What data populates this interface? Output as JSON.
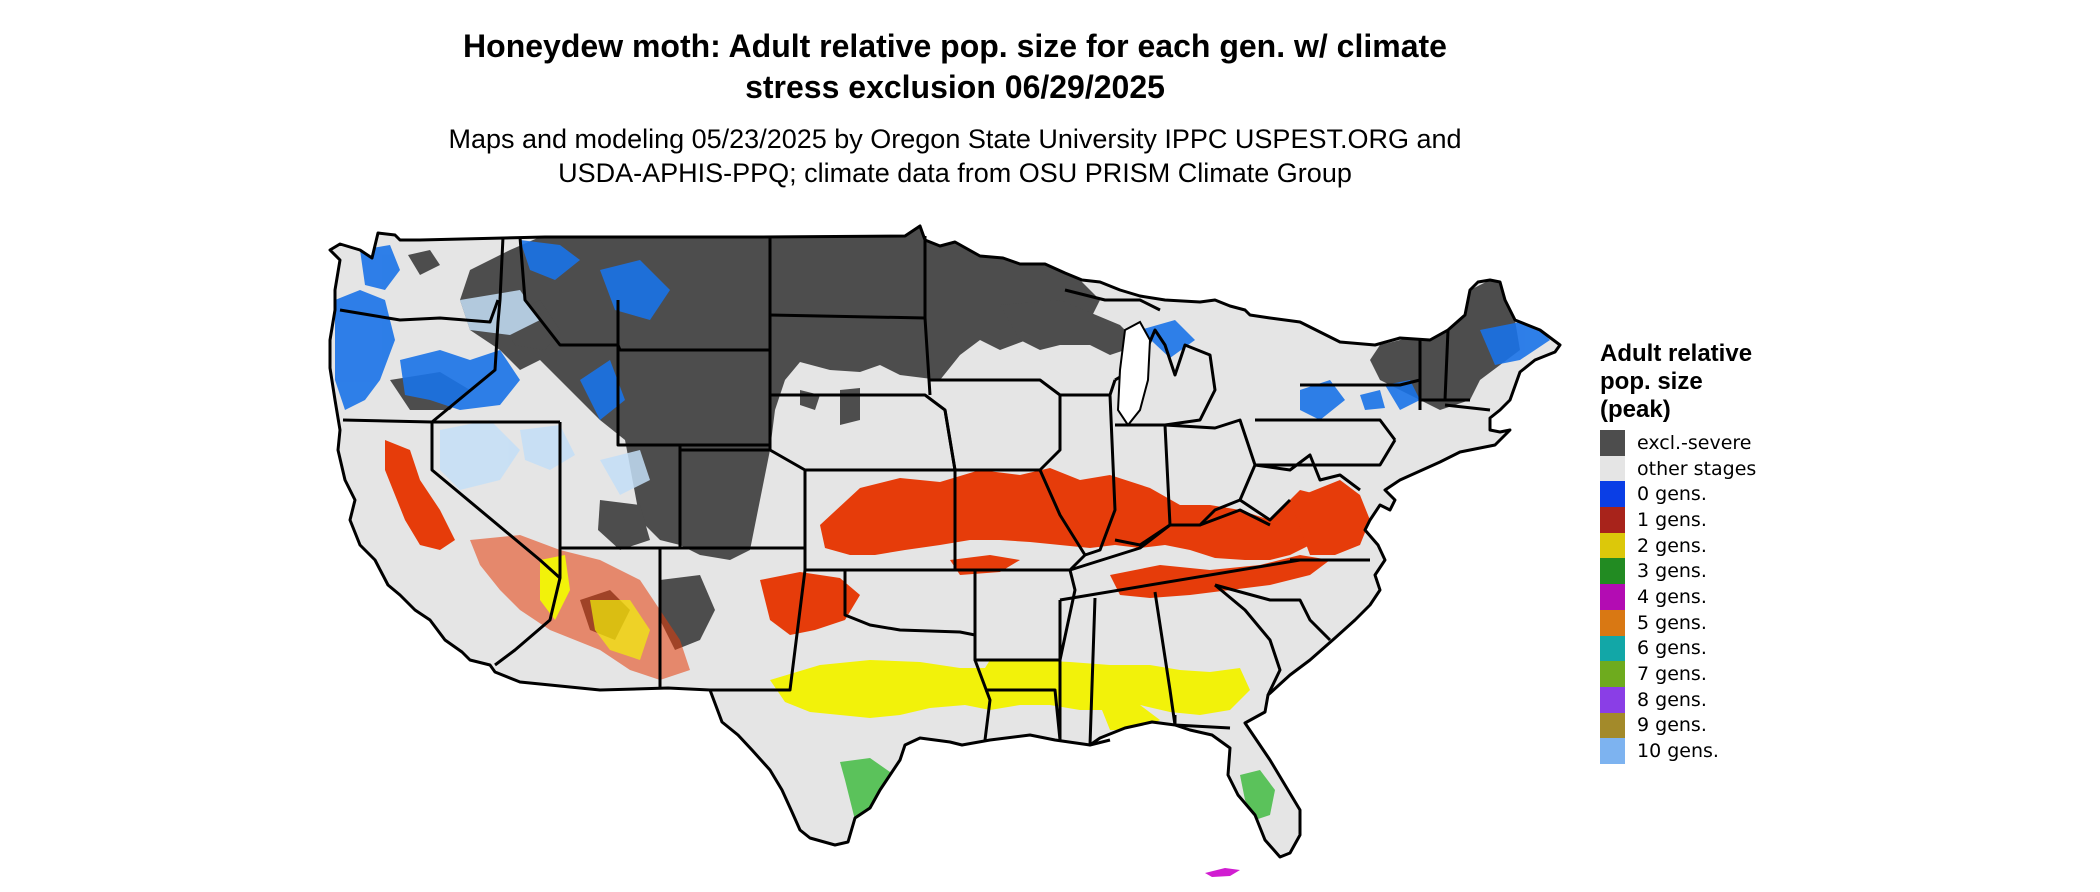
{
  "title_line1": "Honeydew moth: Adult relative pop. size for each gen. w/ climate",
  "title_line2": "stress exclusion 06/29/2025",
  "subtitle_line1": "Maps and modeling 05/23/2025 by Oregon State University IPPC USPEST.ORG and",
  "subtitle_line2": "USDA-APHIS-PPQ; climate data from OSU PRISM Climate Group",
  "legend": {
    "title_line1": "Adult relative",
    "title_line2": "pop. size",
    "title_line3": "(peak)",
    "items": [
      {
        "label": "excl.-severe",
        "color": "#4d4d4d"
      },
      {
        "label": "other stages",
        "color": "#e5e5e5"
      },
      {
        "label": "0 gens.",
        "color": "#0a3ee6"
      },
      {
        "label": "1 gens.",
        "color": "#a8231b"
      },
      {
        "label": "2 gens.",
        "color": "#dcc80a"
      },
      {
        "label": "3 gens.",
        "color": "#228b22"
      },
      {
        "label": "4 gens.",
        "color": "#b30cb3"
      },
      {
        "label": "5 gens.",
        "color": "#d97813"
      },
      {
        "label": "6 gens.",
        "color": "#12a7a7"
      },
      {
        "label": "7 gens.",
        "color": "#6eab1e"
      },
      {
        "label": "8 gens.",
        "color": "#8a3ee6"
      },
      {
        "label": "9 gens.",
        "color": "#a38a2a"
      },
      {
        "label": "10 gens.",
        "color": "#7db3f0"
      }
    ]
  },
  "map_colors": {
    "excluded": "#4d4d4d",
    "other": "#e5e5e5",
    "cool": "#1a73e8",
    "one_gen": "#e63c0a",
    "two_gen": "#f2f20a",
    "three_gen": "#5bc25b",
    "four_gen": "#d11dd1",
    "border": "#000000"
  }
}
